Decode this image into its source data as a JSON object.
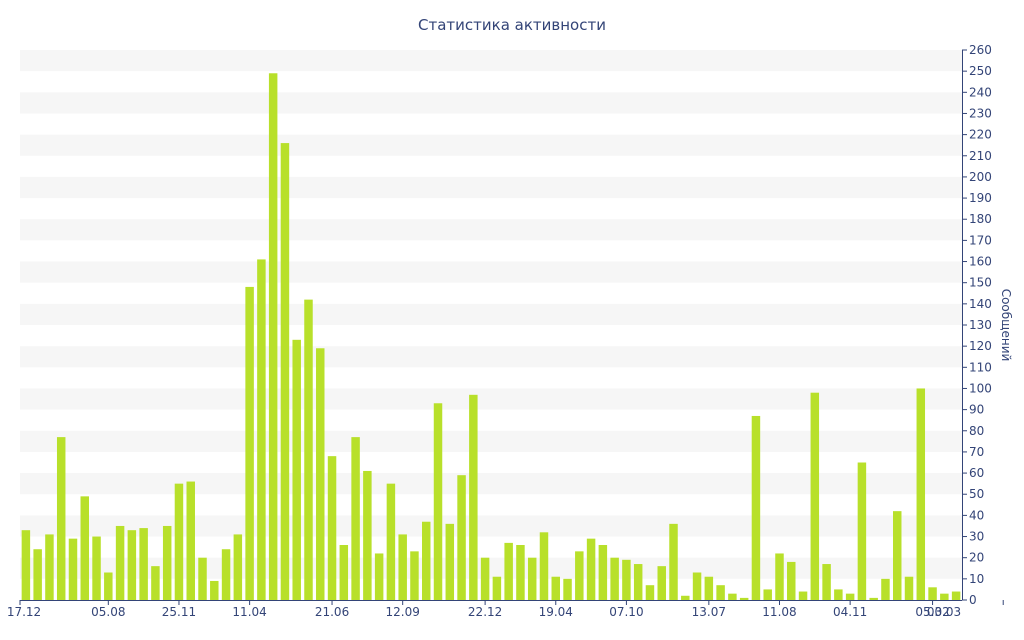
{
  "chart_data": {
    "type": "bar",
    "title": "Статистика активности",
    "ylabel": "Сообщений",
    "xlabel": "",
    "ylim": [
      0,
      260
    ],
    "y_ticks": [
      0,
      10,
      20,
      30,
      40,
      50,
      60,
      70,
      80,
      90,
      100,
      110,
      120,
      130,
      140,
      150,
      160,
      170,
      180,
      190,
      200,
      210,
      220,
      230,
      240,
      250,
      260
    ],
    "x_tick_labels": [
      {
        "index": 0,
        "label": "17.12"
      },
      {
        "index": 7,
        "label": "05.08"
      },
      {
        "index": 13,
        "label": "25.11"
      },
      {
        "index": 19,
        "label": "11.04"
      },
      {
        "index": 26,
        "label": "21.06"
      },
      {
        "index": 32,
        "label": "12.09"
      },
      {
        "index": 39,
        "label": "22.12"
      },
      {
        "index": 45,
        "label": "19.04"
      },
      {
        "index": 51,
        "label": "07.10"
      },
      {
        "index": 58,
        "label": "13.07"
      },
      {
        "index": 64,
        "label": "11.08"
      },
      {
        "index": 70,
        "label": "04.11"
      },
      {
        "index": 77,
        "label": "05.02"
      },
      {
        "index": 83,
        "label": "03.03"
      }
    ],
    "values": [
      33,
      24,
      31,
      77,
      29,
      49,
      30,
      13,
      35,
      33,
      34,
      16,
      35,
      55,
      56,
      20,
      9,
      24,
      31,
      148,
      161,
      249,
      216,
      123,
      142,
      119,
      68,
      26,
      77,
      61,
      22,
      55,
      31,
      23,
      37,
      93,
      36,
      59,
      97,
      20,
      11,
      27,
      26,
      20,
      32,
      11,
      10,
      23,
      29,
      26,
      20,
      19,
      17,
      7,
      16,
      36,
      2,
      13,
      11,
      7,
      3,
      1,
      87,
      5,
      22,
      18,
      4,
      98,
      17,
      5,
      3,
      65,
      1,
      10,
      42,
      11,
      100,
      6,
      3,
      4
    ],
    "grid": "horizontal alternating bands",
    "colors": {
      "bar": "#b8e02a",
      "text": "#334477",
      "axis": "#334477",
      "band": "#f6f6f6"
    }
  }
}
